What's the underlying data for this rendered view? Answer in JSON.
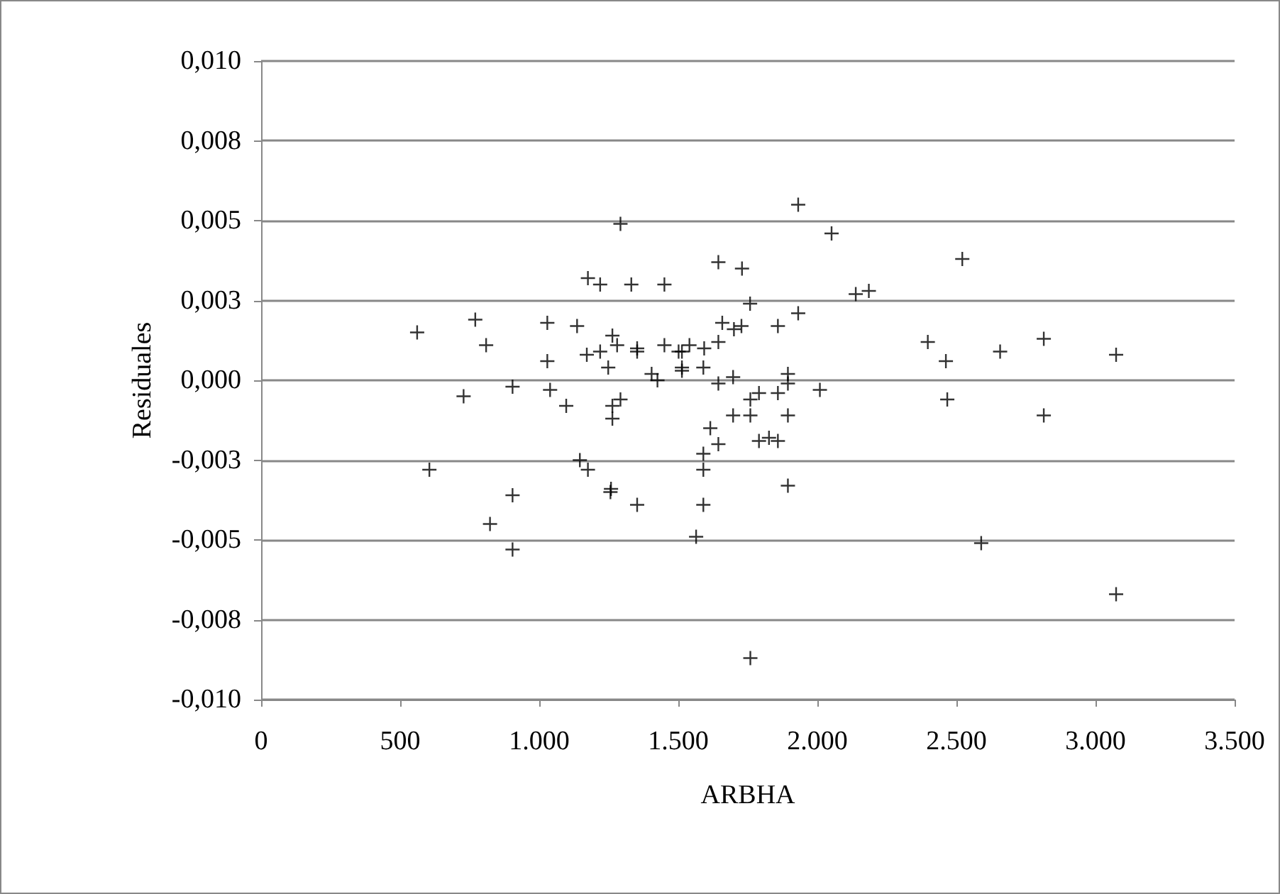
{
  "chart_data": {
    "type": "scatter",
    "xlabel": "ARBHA",
    "ylabel": "Residuales",
    "marker": "cross",
    "grid": "y",
    "xlim": [
      0,
      3500
    ],
    "xticks": [
      0,
      500,
      {
        "value": 1000,
        "label": "1.000"
      },
      {
        "value": 1500,
        "label": "1.500"
      },
      {
        "value": 2000,
        "label": "2.000"
      },
      {
        "value": 2500,
        "label": "2.500"
      },
      {
        "value": 3000,
        "label": "3.000"
      },
      {
        "value": 3500,
        "label": "3.500"
      }
    ],
    "ylim": [
      -0.01,
      0.01
    ],
    "yticks": [
      {
        "value": -0.01,
        "label": "-0,010"
      },
      {
        "value": -0.0075,
        "label": "-0,008"
      },
      {
        "value": -0.005,
        "label": "-0,005"
      },
      {
        "value": -0.0025,
        "label": "-0,003"
      },
      {
        "value": 0,
        "label": "0,000"
      },
      {
        "value": 0.0025,
        "label": "0,003"
      },
      {
        "value": 0.005,
        "label": "0,005"
      },
      {
        "value": 0.0075,
        "label": "0,008"
      },
      {
        "value": 0.01,
        "label": "0,010"
      }
    ],
    "series": [
      {
        "color": "#000000",
        "x": [
          561,
          605,
          770,
          809,
          728,
          904,
          904,
          823,
          904,
          1029,
          1029,
          1039,
          1097,
          1136,
          1175,
          1219,
          1171,
          1219,
          1263,
          1280,
          1248,
          1292,
          1263,
          1263,
          1146,
          1175,
          1258,
          1256,
          1292,
          1931,
          2051,
          1644,
          1729,
          1331,
          1450,
          2138,
          2185,
          1758,
          1931,
          1658,
          1700,
          1727,
          1858,
          2397,
          1352,
          1352,
          1450,
          1501,
          1513,
          1540,
          1593,
          1644,
          1513,
          1513,
          1590,
          1404,
          1425,
          1644,
          1697,
          1894,
          1894,
          2009,
          1790,
          1759,
          1759,
          1858,
          1697,
          1894,
          1615,
          1644,
          1790,
          1826,
          1858,
          1590,
          1590,
          1894,
          1352,
          1590,
          1564,
          1759,
          2521,
          2462,
          2657,
          2814,
          3074,
          2467,
          2814,
          2589,
          3074
        ],
        "values": [
          0.0015,
          -0.0028,
          0.0019,
          0.0011,
          -0.0005,
          -0.0002,
          -0.0036,
          -0.0045,
          -0.0053,
          0.0018,
          0.0006,
          -0.0003,
          -0.0008,
          0.0017,
          0.0032,
          0.003,
          0.0008,
          0.0009,
          0.0014,
          0.0011,
          0.0004,
          -0.0006,
          -0.0008,
          -0.0012,
          -0.0025,
          -0.0028,
          -0.0034,
          -0.0035,
          0.0049,
          0.0055,
          0.0046,
          0.0037,
          0.0035,
          0.003,
          0.003,
          0.0027,
          0.0028,
          0.0024,
          0.0021,
          0.0018,
          0.0016,
          0.0017,
          0.0017,
          0.0012,
          0.001,
          0.0009,
          0.0011,
          0.0009,
          0.0009,
          0.0011,
          0.001,
          0.0012,
          0.0003,
          0.0004,
          0.0004,
          0.0002,
          0.0,
          -0.0001,
          0.0001,
          0.0002,
          -0.0001,
          -0.0003,
          -0.0004,
          -0.0006,
          -0.0011,
          -0.0004,
          -0.0011,
          -0.0011,
          -0.0015,
          -0.002,
          -0.0019,
          -0.0018,
          -0.0019,
          -0.0023,
          -0.0028,
          -0.0033,
          -0.0039,
          -0.0039,
          -0.0049,
          -0.0087,
          0.0038,
          0.0006,
          0.0009,
          0.0013,
          0.0008,
          -0.0006,
          -0.0011,
          -0.0051,
          -0.0067
        ]
      }
    ]
  }
}
